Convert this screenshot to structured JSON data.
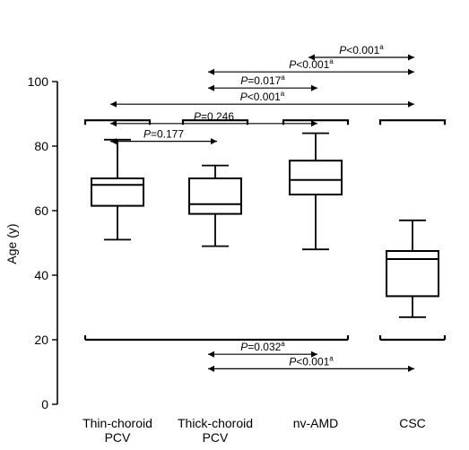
{
  "chart_data": {
    "type": "box",
    "ylabel": "Age (y)",
    "ylim": [
      0,
      100
    ],
    "yticks": [
      0,
      20,
      40,
      60,
      80,
      100
    ],
    "categories": [
      [
        "Thin-choroid",
        "PCV"
      ],
      [
        "Thick-choroid",
        "PCV"
      ],
      [
        "nv-AMD"
      ],
      [
        "CSC"
      ]
    ],
    "boxes": [
      {
        "min": 51,
        "q1": 61.5,
        "median": 68,
        "q3": 70,
        "max": 82
      },
      {
        "min": 49,
        "q1": 59,
        "median": 62,
        "q3": 70,
        "max": 74
      },
      {
        "min": 48,
        "q1": 65,
        "median": 69.5,
        "q3": 75.5,
        "max": 84
      },
      {
        "min": 27,
        "q1": 33.5,
        "median": 45,
        "q3": 47.5,
        "max": 57
      }
    ],
    "comparisons": [
      {
        "from": 2,
        "to": 3,
        "p_text": "<0.001",
        "sup": "a",
        "y": 107.5
      },
      {
        "from": 1,
        "to": 3,
        "p_text": "<0.001",
        "sup": "a",
        "y": 103
      },
      {
        "from": 1,
        "to": 2,
        "p_text": "=0.017",
        "sup": "a",
        "y": 98
      },
      {
        "from": 0,
        "to": 3,
        "p_text": "<0.001",
        "sup": "a",
        "y": 93
      },
      {
        "from": 0,
        "to": 2,
        "p_text": "=0.246",
        "sup": "",
        "y": 87
      },
      {
        "from": 0,
        "to": 1,
        "p_text": "=0.177",
        "sup": "",
        "y": 81.5
      },
      {
        "from": 1,
        "to": 2,
        "p_text": "=0.032",
        "sup": "a",
        "y": 15.5
      },
      {
        "from": 1,
        "to": 3,
        "p_text": "<0.001",
        "sup": "a",
        "y": 11
      }
    ],
    "top_bracket_y": 88,
    "bottom_bracket_y": 20,
    "grid": false
  }
}
